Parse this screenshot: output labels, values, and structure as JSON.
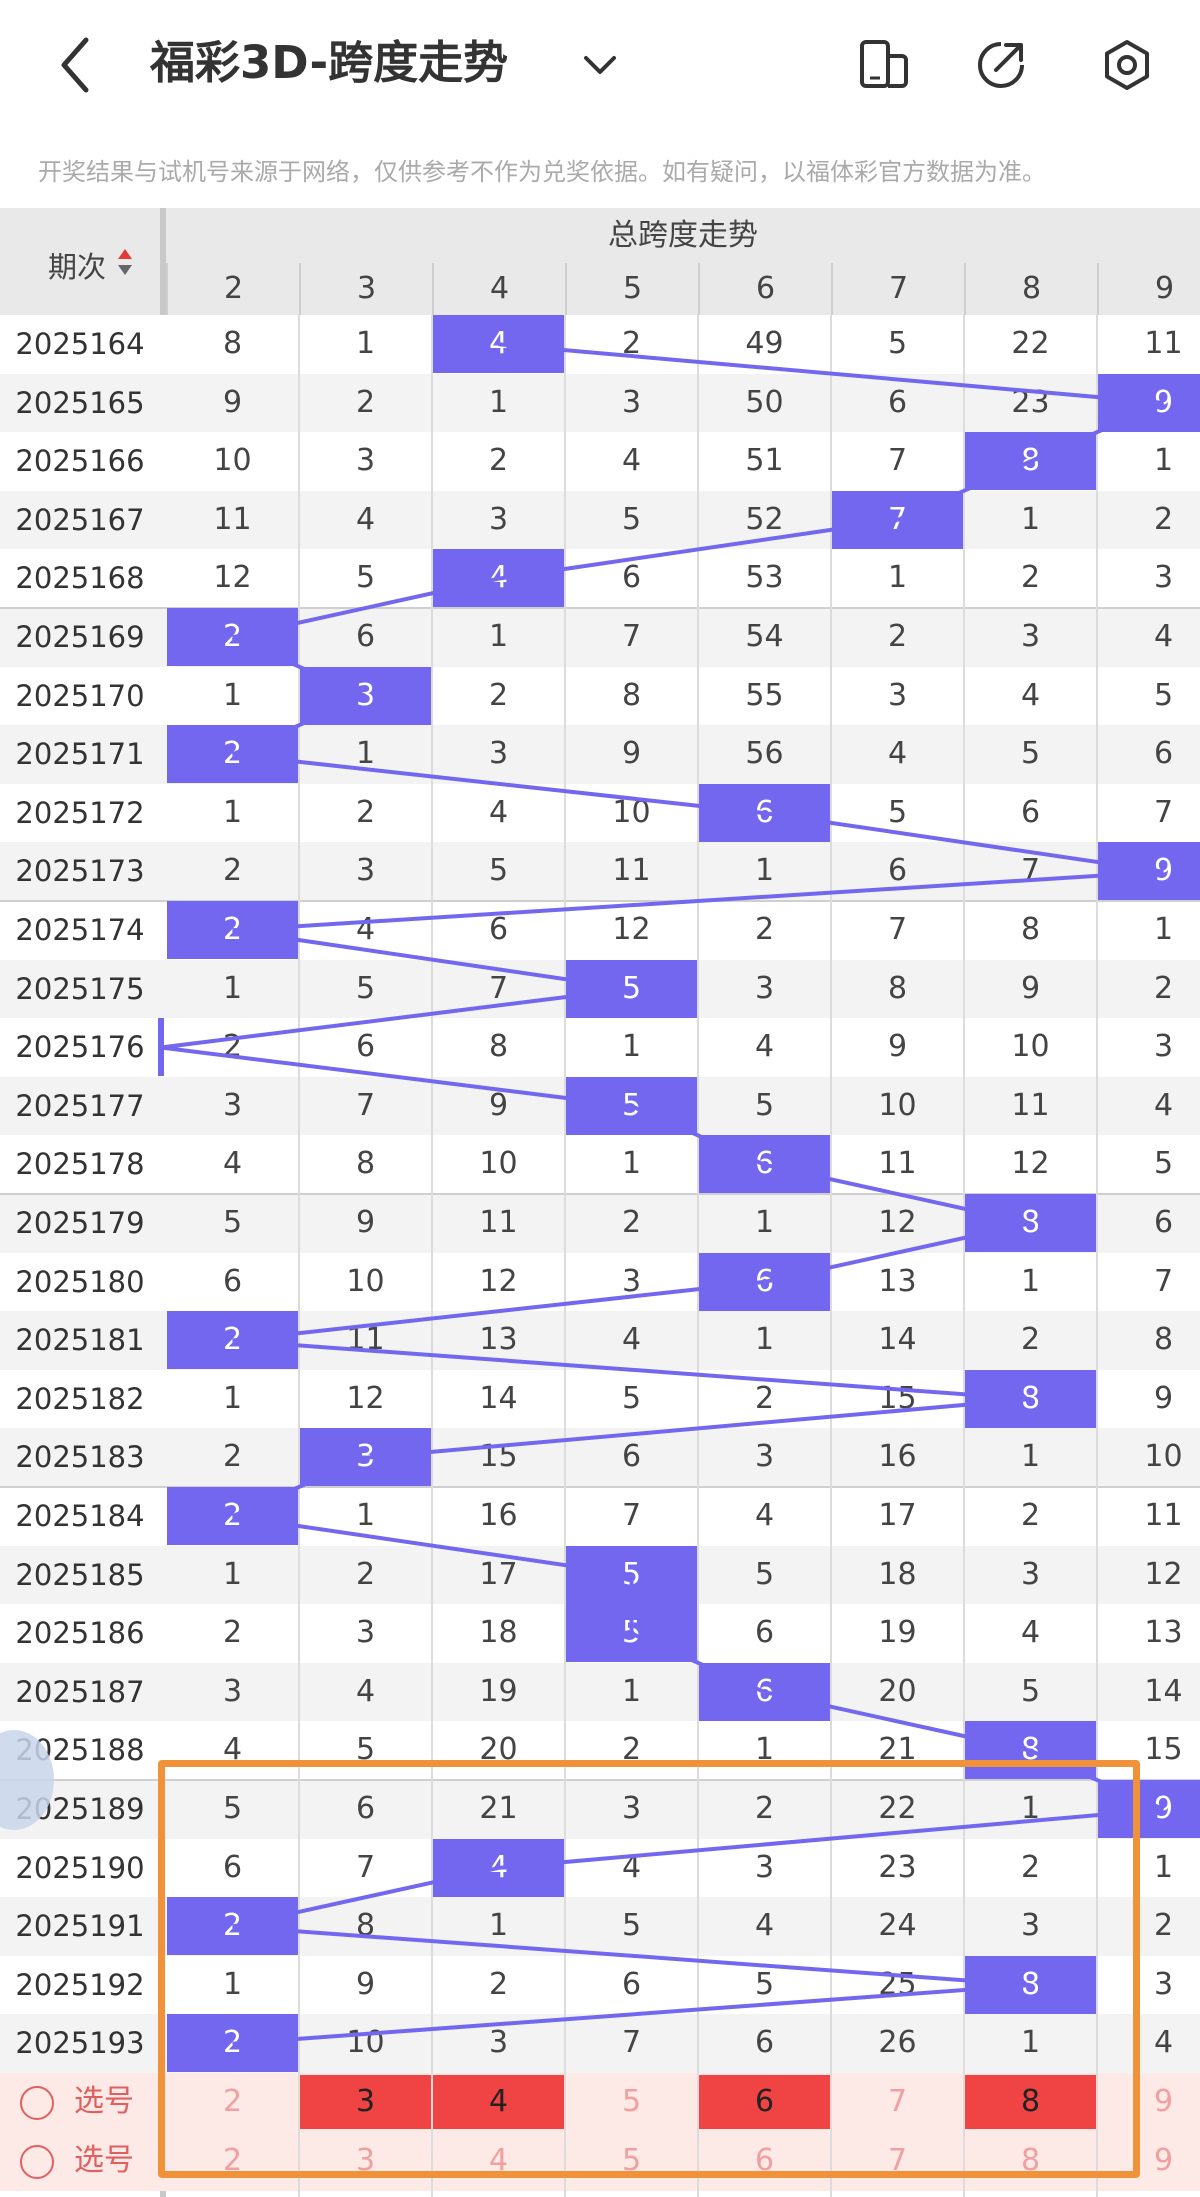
{
  "header": {
    "title": "福彩3D-跨度走势",
    "icons": [
      "back-icon",
      "chevron-down-icon",
      "fold-screen-icon",
      "share-icon",
      "settings-icon"
    ]
  },
  "notice": "开奖结果与试机号来源于网络，仅供参考不作为兑奖依据。如有疑问，以福体彩官方数据为准。",
  "table": {
    "period_header": "期次",
    "group_header": "总跨度走势",
    "columns": [
      "2",
      "3",
      "4",
      "5",
      "6",
      "7",
      "8",
      "9"
    ],
    "rows": [
      {
        "period": "2025164",
        "cells": [
          "8",
          "1",
          "4",
          "2",
          "49",
          "5",
          "22",
          "11"
        ],
        "hit": 2
      },
      {
        "period": "2025165",
        "cells": [
          "9",
          "2",
          "1",
          "3",
          "50",
          "6",
          "23",
          "9"
        ],
        "hit": 7
      },
      {
        "period": "2025166",
        "cells": [
          "10",
          "3",
          "2",
          "4",
          "51",
          "7",
          "8",
          "1"
        ],
        "hit": 6
      },
      {
        "period": "2025167",
        "cells": [
          "11",
          "4",
          "3",
          "5",
          "52",
          "7",
          "1",
          "2"
        ],
        "hit": 5
      },
      {
        "period": "2025168",
        "cells": [
          "12",
          "5",
          "4",
          "6",
          "53",
          "1",
          "2",
          "3"
        ],
        "hit": 2
      },
      {
        "period": "2025169",
        "cells": [
          "2",
          "6",
          "1",
          "7",
          "54",
          "2",
          "3",
          "4"
        ],
        "hit": 0
      },
      {
        "period": "2025170",
        "cells": [
          "1",
          "3",
          "2",
          "8",
          "55",
          "3",
          "4",
          "5"
        ],
        "hit": 1
      },
      {
        "period": "2025171",
        "cells": [
          "2",
          "1",
          "3",
          "9",
          "56",
          "4",
          "5",
          "6"
        ],
        "hit": 0
      },
      {
        "period": "2025172",
        "cells": [
          "1",
          "2",
          "4",
          "10",
          "6",
          "5",
          "6",
          "7"
        ],
        "hit": 4
      },
      {
        "period": "2025173",
        "cells": [
          "2",
          "3",
          "5",
          "11",
          "1",
          "6",
          "7",
          "9"
        ],
        "hit": 7
      },
      {
        "period": "2025174",
        "cells": [
          "2",
          "4",
          "6",
          "12",
          "2",
          "7",
          "8",
          "1"
        ],
        "hit": 0
      },
      {
        "period": "2025175",
        "cells": [
          "1",
          "5",
          "7",
          "5",
          "3",
          "8",
          "9",
          "2"
        ],
        "hit": 3
      },
      {
        "period": "2025176",
        "cells": [
          "2",
          "6",
          "8",
          "1",
          "4",
          "9",
          "10",
          "3"
        ],
        "hit": -1
      },
      {
        "period": "2025177",
        "cells": [
          "3",
          "7",
          "9",
          "5",
          "5",
          "10",
          "11",
          "4"
        ],
        "hit": 3
      },
      {
        "period": "2025178",
        "cells": [
          "4",
          "8",
          "10",
          "1",
          "6",
          "11",
          "12",
          "5"
        ],
        "hit": 4
      },
      {
        "period": "2025179",
        "cells": [
          "5",
          "9",
          "11",
          "2",
          "1",
          "12",
          "8",
          "6"
        ],
        "hit": 6
      },
      {
        "period": "2025180",
        "cells": [
          "6",
          "10",
          "12",
          "3",
          "6",
          "13",
          "1",
          "7"
        ],
        "hit": 4
      },
      {
        "period": "2025181",
        "cells": [
          "2",
          "11",
          "13",
          "4",
          "1",
          "14",
          "2",
          "8"
        ],
        "hit": 0
      },
      {
        "period": "2025182",
        "cells": [
          "1",
          "12",
          "14",
          "5",
          "2",
          "15",
          "8",
          "9"
        ],
        "hit": 6
      },
      {
        "period": "2025183",
        "cells": [
          "2",
          "3",
          "15",
          "6",
          "3",
          "16",
          "1",
          "10"
        ],
        "hit": 1
      },
      {
        "period": "2025184",
        "cells": [
          "2",
          "1",
          "16",
          "7",
          "4",
          "17",
          "2",
          "11"
        ],
        "hit": 0
      },
      {
        "period": "2025185",
        "cells": [
          "1",
          "2",
          "17",
          "5",
          "5",
          "18",
          "3",
          "12"
        ],
        "hit": 3
      },
      {
        "period": "2025186",
        "cells": [
          "2",
          "3",
          "18",
          "5",
          "6",
          "19",
          "4",
          "13"
        ],
        "hit": 3
      },
      {
        "period": "2025187",
        "cells": [
          "3",
          "4",
          "19",
          "1",
          "6",
          "20",
          "5",
          "14"
        ],
        "hit": 4
      },
      {
        "period": "2025188",
        "cells": [
          "4",
          "5",
          "20",
          "2",
          "1",
          "21",
          "8",
          "15"
        ],
        "hit": 6
      },
      {
        "period": "2025189",
        "cells": [
          "5",
          "6",
          "21",
          "3",
          "2",
          "22",
          "1",
          "9"
        ],
        "hit": 7
      },
      {
        "period": "2025190",
        "cells": [
          "6",
          "7",
          "4",
          "4",
          "3",
          "23",
          "2",
          "1"
        ],
        "hit": 2
      },
      {
        "period": "2025191",
        "cells": [
          "2",
          "8",
          "1",
          "5",
          "4",
          "24",
          "3",
          "2"
        ],
        "hit": 0
      },
      {
        "period": "2025192",
        "cells": [
          "1",
          "9",
          "2",
          "6",
          "5",
          "25",
          "8",
          "3"
        ],
        "hit": 6
      },
      {
        "period": "2025193",
        "cells": [
          "2",
          "10",
          "3",
          "7",
          "6",
          "26",
          "1",
          "4"
        ],
        "hit": 0
      }
    ],
    "pick_rows": [
      {
        "label": "选号",
        "cells": [
          "2",
          "3",
          "4",
          "5",
          "6",
          "7",
          "8",
          "9"
        ],
        "selected": [
          1,
          2,
          4,
          6
        ]
      },
      {
        "label": "选号",
        "cells": [
          "2",
          "3",
          "4",
          "5",
          "6",
          "7",
          "8",
          "9"
        ],
        "selected": []
      }
    ]
  },
  "colors": {
    "hit": "#7367f0",
    "pick_selected": "#f04444",
    "highlight_box": "#f0923a"
  }
}
